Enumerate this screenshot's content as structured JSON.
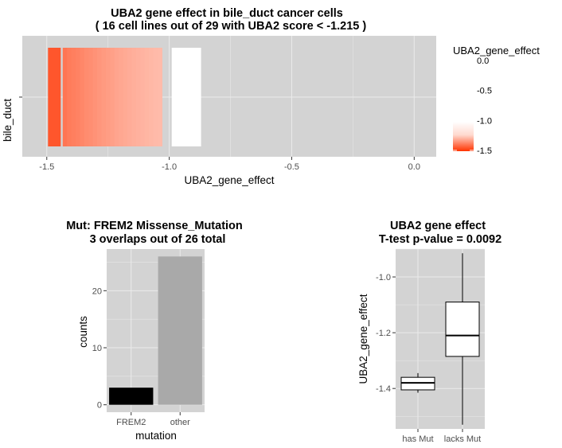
{
  "chart_data": [
    {
      "type": "heatmap",
      "title_line1": "UBA2 gene effect in bile_duct cancer cells",
      "title_line2": "( 16 cell lines out of  29  with UBA2 score < -1.215 )",
      "xlabel": "UBA2_gene_effect",
      "ylabel": "bile_duct",
      "x_ticks": [
        "-1.5",
        "-1.0",
        "-0.5",
        "0.0"
      ],
      "x_tick_values": [
        -1.5,
        -1.0,
        -0.5,
        0.0
      ],
      "xlim": [
        -1.6,
        0.09
      ],
      "grid": true,
      "tile_values": [
        -1.49,
        -1.44,
        -1.42,
        -1.41,
        -1.4,
        -1.38,
        -1.36,
        -1.35,
        -1.33,
        -1.31,
        -1.29,
        -1.27,
        -1.25,
        -1.22,
        -1.2,
        -1.18,
        -1.16,
        -1.14,
        -1.12,
        -1.1,
        -1.08,
        -1.06,
        -1.04,
        -1.03
      ],
      "extra_tile": {
        "from": -0.99,
        "to": -0.87
      },
      "colors": {
        "panel": "#d3d3d3",
        "low": "#ff3300",
        "high": "#ffffff",
        "grid": "#ebebeb"
      },
      "legend": {
        "title": "UBA2_gene_effect",
        "ticks": [
          "0.0",
          "-0.5",
          "-1.0",
          "-1.5"
        ],
        "tick_values": [
          0.0,
          -0.5,
          -1.0,
          -1.5
        ],
        "placement": "right"
      }
    },
    {
      "type": "bar",
      "title_line1": "Mut: FREM2 Missense_Mutation",
      "title_line2": "3 overlaps out of 26 total",
      "categories": [
        "FREM2",
        "other"
      ],
      "values": [
        3,
        26
      ],
      "bar_colors": [
        "#000000",
        "#a9a9a9"
      ],
      "xlabel": "mutation",
      "ylabel": "counts",
      "y_ticks": [
        "0",
        "10",
        "20"
      ],
      "y_tick_values": [
        0,
        10,
        20
      ],
      "ylim": [
        -1.3,
        27.3
      ],
      "grid": true
    },
    {
      "type": "box",
      "title_line1": "UBA2 gene effect",
      "title_line2": "T-test p-value = 0.0092",
      "categories": [
        "has Mut",
        "lacks Mut"
      ],
      "boxes": [
        {
          "min": -1.415,
          "q1": -1.405,
          "median": -1.38,
          "q3": -1.36,
          "max": -1.345
        },
        {
          "min": -1.53,
          "q1": -1.285,
          "median": -1.21,
          "q3": -1.09,
          "max": -0.915
        }
      ],
      "ylabel": "UBA2_gene_effect",
      "y_ticks": [
        "-1.4",
        "-1.2",
        "-1.0"
      ],
      "y_tick_values": [
        -1.4,
        -1.2,
        -1.0
      ],
      "ylim": [
        -1.545,
        -0.9
      ],
      "grid": true
    }
  ]
}
